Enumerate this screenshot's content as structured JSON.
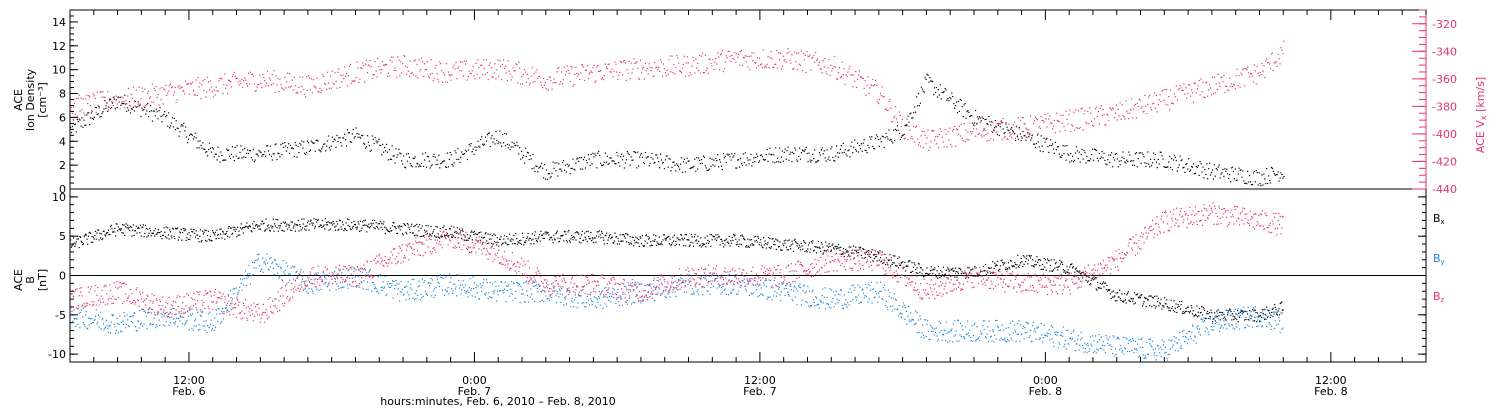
{
  "colors": {
    "black": "#000000",
    "pink": "#e63468",
    "blue": "#1f86e0",
    "axis": "#000000"
  },
  "footer_label": "hours:minutes, Feb. 6, 2010 – Feb. 8, 2010",
  "x_ticks": [
    {
      "time": "12:00",
      "date": "Feb. 6"
    },
    {
      "time": "0:00",
      "date": "Feb. 7"
    },
    {
      "time": "12:00",
      "date": "Feb. 7"
    },
    {
      "time": "0:00",
      "date": "Feb. 8"
    },
    {
      "time": "12:00",
      "date": "Feb. 8"
    }
  ],
  "chart_data": [
    {
      "type": "scatter",
      "panel": "top",
      "xlim": [
        "Feb 6 07:00",
        "Feb 8 16:00"
      ],
      "y_left": {
        "label_lines": [
          "ACE",
          "Ion Density",
          "[cm⁻³]"
        ],
        "ylim": [
          0,
          15
        ],
        "ticks": [
          0,
          2,
          4,
          6,
          8,
          10,
          12,
          14
        ]
      },
      "y_right": {
        "label": "ACE V_x [km/s]",
        "ylim": [
          -440,
          -310
        ],
        "ticks": [
          -440,
          -420,
          -400,
          -380,
          -360,
          -340,
          -320
        ]
      },
      "series": [
        {
          "color_key": "black",
          "axis": "left",
          "x": [
            "Feb 6 07:00",
            "Feb 6 09:00",
            "Feb 6 11:00",
            "Feb 6 13:00",
            "Feb 6 15:00",
            "Feb 6 17:00",
            "Feb 6 19:00",
            "Feb 6 21:00",
            "Feb 6 23:00",
            "Feb 7 01:00",
            "Feb 7 03:00",
            "Feb 7 05:00",
            "Feb 7 07:00",
            "Feb 7 09:00",
            "Feb 7 11:00",
            "Feb 7 13:00",
            "Feb 7 15:00",
            "Feb 7 17:00",
            "Feb 7 18:00",
            "Feb 7 19:00",
            "Feb 7 21:00",
            "Feb 7 23:00",
            "Feb 8 01:00",
            "Feb 8 03:00",
            "Feb 8 05:00",
            "Feb 8 07:00",
            "Feb 8 09:00",
            "Feb 8 10:00"
          ],
          "y": [
            5,
            7.5,
            6,
            3,
            3,
            3.5,
            4.5,
            2.5,
            2.5,
            4.5,
            1.5,
            2.5,
            2.5,
            2,
            2.5,
            3,
            3,
            4,
            5,
            9,
            6,
            4.5,
            3,
            2.5,
            2.5,
            1.5,
            1,
            1.5
          ]
        },
        {
          "color_key": "pink",
          "axis": "right",
          "x": [
            "Feb 6 07:00",
            "Feb 6 09:00",
            "Feb 6 11:00",
            "Feb 6 13:00",
            "Feb 6 15:00",
            "Feb 6 17:00",
            "Feb 6 19:00",
            "Feb 6 21:00",
            "Feb 6 23:00",
            "Feb 7 01:00",
            "Feb 7 03:00",
            "Feb 7 05:00",
            "Feb 7 07:00",
            "Feb 7 09:00",
            "Feb 7 11:00",
            "Feb 7 13:00",
            "Feb 7 15:00",
            "Feb 7 17:00",
            "Feb 7 18:00",
            "Feb 7 19:00",
            "Feb 7 21:00",
            "Feb 7 23:00",
            "Feb 8 01:00",
            "Feb 8 03:00",
            "Feb 8 05:00",
            "Feb 8 07:00",
            "Feb 8 09:00",
            "Feb 8 10:00"
          ],
          "y": [
            -380,
            -375,
            -370,
            -365,
            -360,
            -365,
            -355,
            -350,
            -355,
            -352,
            -360,
            -355,
            -352,
            -350,
            -345,
            -345,
            -350,
            -370,
            -395,
            -405,
            -398,
            -395,
            -390,
            -385,
            -375,
            -365,
            -355,
            -340
          ]
        }
      ]
    },
    {
      "type": "scatter",
      "panel": "bottom",
      "xlim": [
        "Feb 6 07:00",
        "Feb 8 16:00"
      ],
      "y_left": {
        "label_lines": [
          "ACE",
          "B",
          "[nT]"
        ],
        "ylim": [
          -11,
          11
        ],
        "ticks": [
          -10,
          -5,
          0,
          5,
          10
        ]
      },
      "legend": [
        "Bx",
        "By",
        "Bz"
      ],
      "series": [
        {
          "name": "Bx",
          "color_key": "black",
          "x": [
            "Feb 6 07:00",
            "Feb 6 09:00",
            "Feb 6 11:00",
            "Feb 6 13:00",
            "Feb 6 15:00",
            "Feb 6 17:00",
            "Feb 6 19:00",
            "Feb 6 21:00",
            "Feb 6 23:00",
            "Feb 7 01:00",
            "Feb 7 03:00",
            "Feb 7 05:00",
            "Feb 7 07:00",
            "Feb 7 09:00",
            "Feb 7 11:00",
            "Feb 7 13:00",
            "Feb 7 15:00",
            "Feb 7 17:00",
            "Feb 7 19:00",
            "Feb 7 21:00",
            "Feb 7 23:00",
            "Feb 8 01:00",
            "Feb 8 03:00",
            "Feb 8 05:00",
            "Feb 8 07:00",
            "Feb 8 09:00",
            "Feb 8 10:00"
          ],
          "y": [
            4,
            6,
            5.5,
            5,
            6.5,
            6.5,
            6.5,
            6,
            5.5,
            4.5,
            5,
            5,
            4.5,
            4.5,
            4.5,
            4,
            3.5,
            2.5,
            0.5,
            0.5,
            2,
            1,
            -2.5,
            -3.5,
            -5,
            -5,
            -4
          ]
        },
        {
          "name": "By",
          "color_key": "blue",
          "x": [
            "Feb 6 07:00",
            "Feb 6 09:00",
            "Feb 6 11:00",
            "Feb 6 13:00",
            "Feb 6 15:00",
            "Feb 6 17:00",
            "Feb 6 19:00",
            "Feb 6 21:00",
            "Feb 6 23:00",
            "Feb 7 01:00",
            "Feb 7 03:00",
            "Feb 7 05:00",
            "Feb 7 07:00",
            "Feb 7 09:00",
            "Feb 7 11:00",
            "Feb 7 13:00",
            "Feb 7 15:00",
            "Feb 7 17:00",
            "Feb 7 19:00",
            "Feb 7 21:00",
            "Feb 7 23:00",
            "Feb 8 01:00",
            "Feb 8 03:00",
            "Feb 8 05:00",
            "Feb 8 07:00",
            "Feb 8 09:00",
            "Feb 8 10:00"
          ],
          "y": [
            -5,
            -6,
            -5,
            -6,
            2,
            -1,
            0,
            -2,
            -1,
            -2,
            -2,
            -3,
            -2,
            -1,
            -1,
            -2,
            -3,
            -2,
            -7,
            -7,
            -7,
            -8,
            -9,
            -9.5,
            -6,
            -5,
            -6
          ]
        },
        {
          "name": "Bz",
          "color_key": "pink",
          "x": [
            "Feb 6 07:00",
            "Feb 6 09:00",
            "Feb 6 11:00",
            "Feb 6 13:00",
            "Feb 6 15:00",
            "Feb 6 17:00",
            "Feb 6 19:00",
            "Feb 6 21:00",
            "Feb 6 23:00",
            "Feb 7 01:00",
            "Feb 7 03:00",
            "Feb 7 05:00",
            "Feb 7 07:00",
            "Feb 7 09:00",
            "Feb 7 11:00",
            "Feb 7 13:00",
            "Feb 7 15:00",
            "Feb 7 17:00",
            "Feb 7 19:00",
            "Feb 7 21:00",
            "Feb 7 23:00",
            "Feb 8 01:00",
            "Feb 8 03:00",
            "Feb 8 05:00",
            "Feb 8 07:00",
            "Feb 8 09:00",
            "Feb 8 10:00"
          ],
          "y": [
            -3,
            -2,
            -4,
            -3,
            -5,
            0,
            0,
            3,
            5,
            3,
            -1,
            -1,
            -2,
            0,
            0,
            0,
            2,
            2,
            -2,
            0,
            -1,
            -1,
            2,
            7,
            8,
            7,
            6.5
          ]
        }
      ]
    }
  ]
}
